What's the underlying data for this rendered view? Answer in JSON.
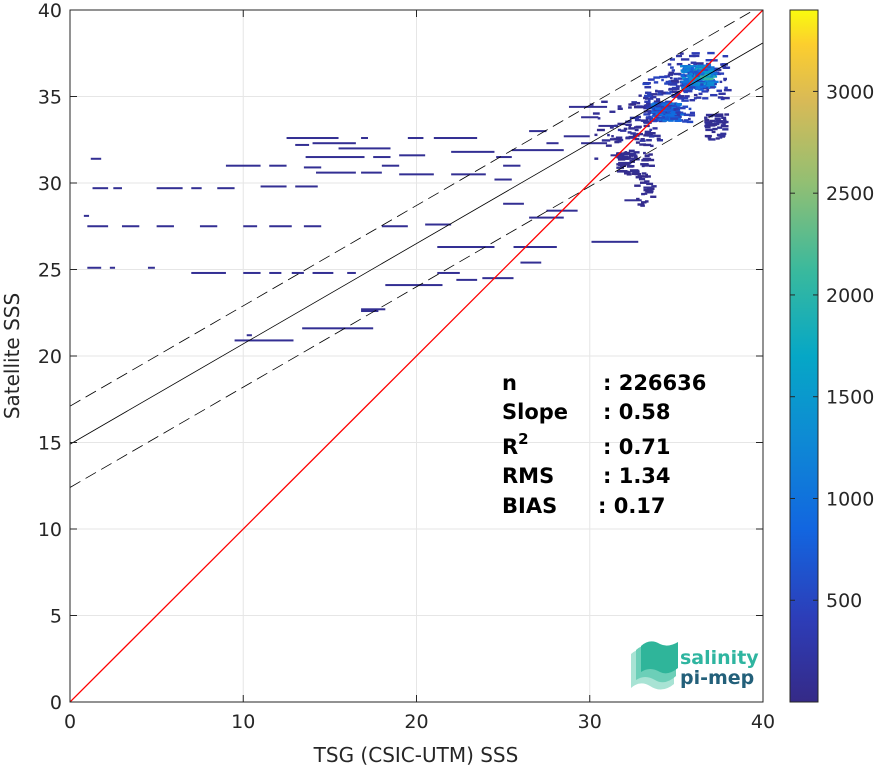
{
  "chart_data": {
    "type": "heatmap",
    "xlabel": "TSG (CSIC-UTM) SSS",
    "ylabel": "Satellite SSS",
    "xlim": [
      0,
      40
    ],
    "ylim": [
      0,
      40
    ],
    "x_ticks": [
      "0",
      "10",
      "20",
      "30",
      "40"
    ],
    "y_ticks": [
      "0",
      "5",
      "10",
      "15",
      "20",
      "25",
      "30",
      "35",
      "40"
    ],
    "grid": true,
    "colorbar": {
      "range": [
        0,
        3400
      ],
      "ticks": [
        "500",
        "1000",
        "1500",
        "2000",
        "2500",
        "3000"
      ],
      "tick_values": [
        500,
        1000,
        1500,
        2000,
        2500,
        3000
      ]
    },
    "stats": [
      {
        "label": "n",
        "value": ": 226636"
      },
      {
        "label": "Slope",
        "value": ": 0.58"
      },
      {
        "label": "R",
        "sup": "2",
        "value": ": 0.71"
      },
      {
        "label": "RMS",
        "value": ": 1.34"
      },
      {
        "label": "BIAS",
        "value": ": 0.17"
      }
    ],
    "lines": {
      "identity": {
        "slope": 1.0,
        "intercept": 0.0,
        "color": "#ff0000"
      },
      "fit": {
        "slope": 0.58,
        "intercept": 14.9,
        "color": "#000000"
      },
      "fit_upper": {
        "slope": 0.58,
        "intercept": 17.1,
        "style": "dashed"
      },
      "fit_lower": {
        "slope": 0.58,
        "intercept": 12.4,
        "style": "dashed"
      }
    },
    "segments": [
      [
        1.2,
        31.4,
        1.8
      ],
      [
        1.3,
        29.7,
        2.2
      ],
      [
        2.5,
        29.7,
        3.0
      ],
      [
        5.0,
        29.7,
        6.5
      ],
      [
        7.0,
        29.7,
        7.6
      ],
      [
        8.5,
        29.7,
        9.5
      ],
      [
        1.0,
        27.5,
        2.2
      ],
      [
        3.0,
        27.5,
        4.0
      ],
      [
        5.0,
        27.5,
        6.0
      ],
      [
        7.5,
        27.5,
        8.5
      ],
      [
        10.0,
        27.5,
        10.8
      ],
      [
        11.5,
        27.5,
        12.8
      ],
      [
        13.5,
        27.5,
        14.5
      ],
      [
        18.0,
        27.5,
        19.5
      ],
      [
        0.8,
        28.1,
        1.1
      ],
      [
        1.0,
        25.1,
        1.8
      ],
      [
        2.3,
        25.1,
        2.6
      ],
      [
        4.5,
        25.1,
        4.9
      ],
      [
        7.0,
        24.8,
        9.0
      ],
      [
        10.0,
        24.8,
        11.0
      ],
      [
        11.5,
        24.8,
        12.2
      ],
      [
        12.8,
        24.8,
        13.5
      ],
      [
        14.0,
        24.8,
        15.2
      ],
      [
        16.0,
        24.8,
        16.5
      ],
      [
        9.5,
        20.9,
        12.9
      ],
      [
        10.2,
        21.2,
        10.5
      ],
      [
        13.4,
        21.6,
        17.5
      ],
      [
        16.8,
        22.6,
        17.8
      ],
      [
        16.8,
        22.7,
        18.2
      ],
      [
        18.2,
        24.1,
        21.5
      ],
      [
        21.2,
        24.8,
        22.5
      ],
      [
        22.3,
        24.4,
        23.5
      ],
      [
        23.8,
        24.5,
        25.6
      ],
      [
        21.2,
        26.3,
        24.5
      ],
      [
        25.6,
        26.3,
        28.1
      ],
      [
        30.1,
        26.6,
        32.8
      ],
      [
        26.0,
        25.4,
        27.2
      ],
      [
        27.5,
        28.4,
        29.3
      ],
      [
        26.5,
        28.0,
        28.5
      ],
      [
        25.0,
        28.8,
        26.2
      ],
      [
        20.5,
        27.6,
        22.0
      ],
      [
        12.5,
        32.6,
        15.5
      ],
      [
        13.0,
        32.2,
        13.8
      ],
      [
        14.0,
        32.3,
        16.5
      ],
      [
        15.5,
        32.0,
        18.5
      ],
      [
        16.8,
        32.6,
        17.2
      ],
      [
        13.6,
        31.5,
        17.0
      ],
      [
        17.5,
        31.5,
        18.5
      ],
      [
        19.0,
        31.6,
        20.5
      ],
      [
        19.5,
        32.6,
        20.4
      ],
      [
        21.0,
        32.6,
        23.5
      ],
      [
        22.0,
        31.8,
        24.5
      ],
      [
        24.6,
        31.5,
        25.5
      ],
      [
        25.5,
        31.9,
        28.5
      ],
      [
        29.5,
        32.3,
        31.0
      ],
      [
        27.5,
        32.3,
        28.2
      ],
      [
        14.2,
        30.6,
        16.5
      ],
      [
        16.8,
        30.6,
        18.0
      ],
      [
        19.0,
        30.5,
        21.0
      ],
      [
        22.0,
        30.5,
        24.0
      ],
      [
        24.5,
        30.2,
        25.5
      ],
      [
        18.0,
        31.0,
        19.0
      ],
      [
        9.0,
        31.0,
        11.0
      ],
      [
        11.5,
        31.0,
        12.5
      ],
      [
        13.0,
        29.8,
        14.3
      ],
      [
        11.0,
        29.8,
        12.5
      ],
      [
        28.8,
        34.4,
        31.0
      ],
      [
        29.5,
        33.8,
        30.5
      ],
      [
        30.5,
        33.3,
        31.5
      ],
      [
        28.5,
        32.7,
        30.0
      ],
      [
        26.5,
        33.0,
        27.5
      ],
      [
        13.5,
        30.9,
        14.5
      ],
      [
        25.0,
        31.0,
        26.0
      ],
      [
        31.2,
        31.6,
        32.0
      ],
      [
        32.0,
        29.0,
        33.0
      ]
    ],
    "clusters": [
      {
        "x0": 30.0,
        "x1": 33.5,
        "y0": 31.4,
        "y1": 34.8,
        "density": 120
      },
      {
        "x0": 31.0,
        "x1": 34.0,
        "y0": 32.4,
        "y1": 35.2,
        "density": 220
      },
      {
        "x0": 33.0,
        "x1": 35.8,
        "y0": 33.5,
        "y1": 36.2,
        "density": 450
      },
      {
        "x0": 34.5,
        "x1": 37.8,
        "y0": 34.8,
        "y1": 37.6,
        "density": 380
      },
      {
        "x0": 35.2,
        "x1": 37.0,
        "y0": 35.4,
        "y1": 36.8,
        "density": 1200
      },
      {
        "x0": 33.5,
        "x1": 35.0,
        "y0": 33.6,
        "y1": 34.6,
        "density": 900
      },
      {
        "x0": 36.0,
        "x1": 36.8,
        "y0": 36.0,
        "y1": 36.6,
        "density": 1800
      },
      {
        "x0": 36.6,
        "x1": 37.8,
        "y0": 32.5,
        "y1": 34.0,
        "density": 140
      },
      {
        "x0": 32.5,
        "x1": 33.6,
        "y0": 28.6,
        "y1": 31.8,
        "density": 90
      },
      {
        "x0": 31.5,
        "x1": 32.5,
        "y0": 30.5,
        "y1": 31.8,
        "density": 100
      }
    ]
  },
  "logo": {
    "line1": "salinity",
    "line2": "pi-mep"
  }
}
